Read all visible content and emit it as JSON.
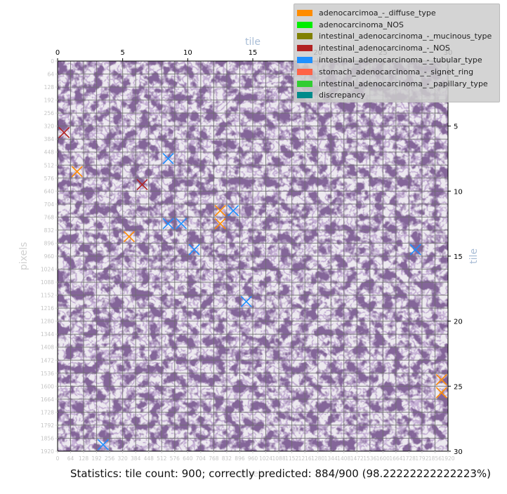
{
  "chart_data": {
    "type": "heatmap",
    "title": "",
    "x_top_label": "tile",
    "y_right_label": "tile",
    "y_left_label": "pixels",
    "x_bottom_label": "pixels",
    "grid": {
      "tiles_x": 30,
      "tiles_y": 30,
      "pixels": 1920
    },
    "x_top_ticks": [
      "0",
      "5",
      "10",
      "15",
      "20",
      "25",
      "30"
    ],
    "y_right_ticks": [
      "5",
      "10",
      "15",
      "20",
      "25",
      "30"
    ],
    "y_left_ticks": [
      "0",
      "64",
      "128",
      "192",
      "256",
      "320",
      "384",
      "448",
      "512",
      "576",
      "640",
      "704",
      "768",
      "832",
      "896",
      "960",
      "1024",
      "1088",
      "1152",
      "1216",
      "1280",
      "1344",
      "1408",
      "1472",
      "1536",
      "1600",
      "1664",
      "1728",
      "1792",
      "1856",
      "1920"
    ],
    "x_bottom_ticks": [
      "0",
      "64",
      "128",
      "192",
      "256",
      "320",
      "384",
      "448",
      "512",
      "576",
      "640",
      "704",
      "768",
      "832",
      "896",
      "960",
      "1024",
      "1088",
      "1152",
      "1216",
      "1280",
      "1344",
      "1408",
      "1472",
      "1536",
      "1600",
      "1664",
      "1728",
      "1792",
      "1856",
      "1920"
    ],
    "legend": [
      {
        "label": "adenocarcimoa_-_diffuse_type",
        "color": "#ff8c00"
      },
      {
        "label": "adenocarcinoma_NOS",
        "color": "#00ee00"
      },
      {
        "label": "intestinal_adenocarcinoma_-_mucinous_type",
        "color": "#808000"
      },
      {
        "label": "intestinal_adenocarcinoma_-_NOS",
        "color": "#b22222"
      },
      {
        "label": "intestinal_adenocarcinoma_-_tubular_type",
        "color": "#1e90ff"
      },
      {
        "label": "stomach_adenocarcinoma_-_signet_ring",
        "color": "#ff6347"
      },
      {
        "label": "intestinal_adenocarcinoma_-_papillary_type",
        "color": "#32cd32"
      },
      {
        "label": "discrepancy",
        "color": "#008b8b"
      }
    ],
    "markers": [
      {
        "col": 0,
        "row": 5,
        "class": "intestinal_adenocarcinoma_-_NOS"
      },
      {
        "col": 6,
        "row": 9,
        "class": "intestinal_adenocarcinoma_-_NOS"
      },
      {
        "col": 1,
        "row": 8,
        "class": "adenocarcimoa_-_diffuse_type"
      },
      {
        "col": 5,
        "row": 13,
        "class": "adenocarcimoa_-_diffuse_type"
      },
      {
        "col": 12,
        "row": 11,
        "class": "adenocarcimoa_-_diffuse_type"
      },
      {
        "col": 12,
        "row": 12,
        "class": "adenocarcimoa_-_diffuse_type"
      },
      {
        "col": 29,
        "row": 24,
        "class": "adenocarcimoa_-_diffuse_type"
      },
      {
        "col": 29,
        "row": 25,
        "class": "adenocarcimoa_-_diffuse_type"
      },
      {
        "col": 8,
        "row": 7,
        "class": "intestinal_adenocarcinoma_-_tubular_type"
      },
      {
        "col": 8,
        "row": 12,
        "class": "intestinal_adenocarcinoma_-_tubular_type"
      },
      {
        "col": 9,
        "row": 12,
        "class": "intestinal_adenocarcinoma_-_tubular_type"
      },
      {
        "col": 13,
        "row": 11,
        "class": "intestinal_adenocarcinoma_-_tubular_type"
      },
      {
        "col": 10,
        "row": 14,
        "class": "intestinal_adenocarcinoma_-_tubular_type"
      },
      {
        "col": 27,
        "row": 14,
        "class": "intestinal_adenocarcinoma_-_tubular_type"
      },
      {
        "col": 14,
        "row": 18,
        "class": "intestinal_adenocarcinoma_-_tubular_type"
      },
      {
        "col": 3,
        "row": 29,
        "class": "intestinal_adenocarcinoma_-_tubular_type"
      }
    ]
  },
  "statistics": {
    "text": "Statistics: tile count: 900; correctly predicted: 884/900 (98.22222222222223%)"
  },
  "colors": {
    "tissue_dark": "#3a2250",
    "tissue_mid": "#6a4f86",
    "background": "#ece8ef",
    "grid": "#6f6f6f",
    "axis_label": "#a9bdd6"
  }
}
